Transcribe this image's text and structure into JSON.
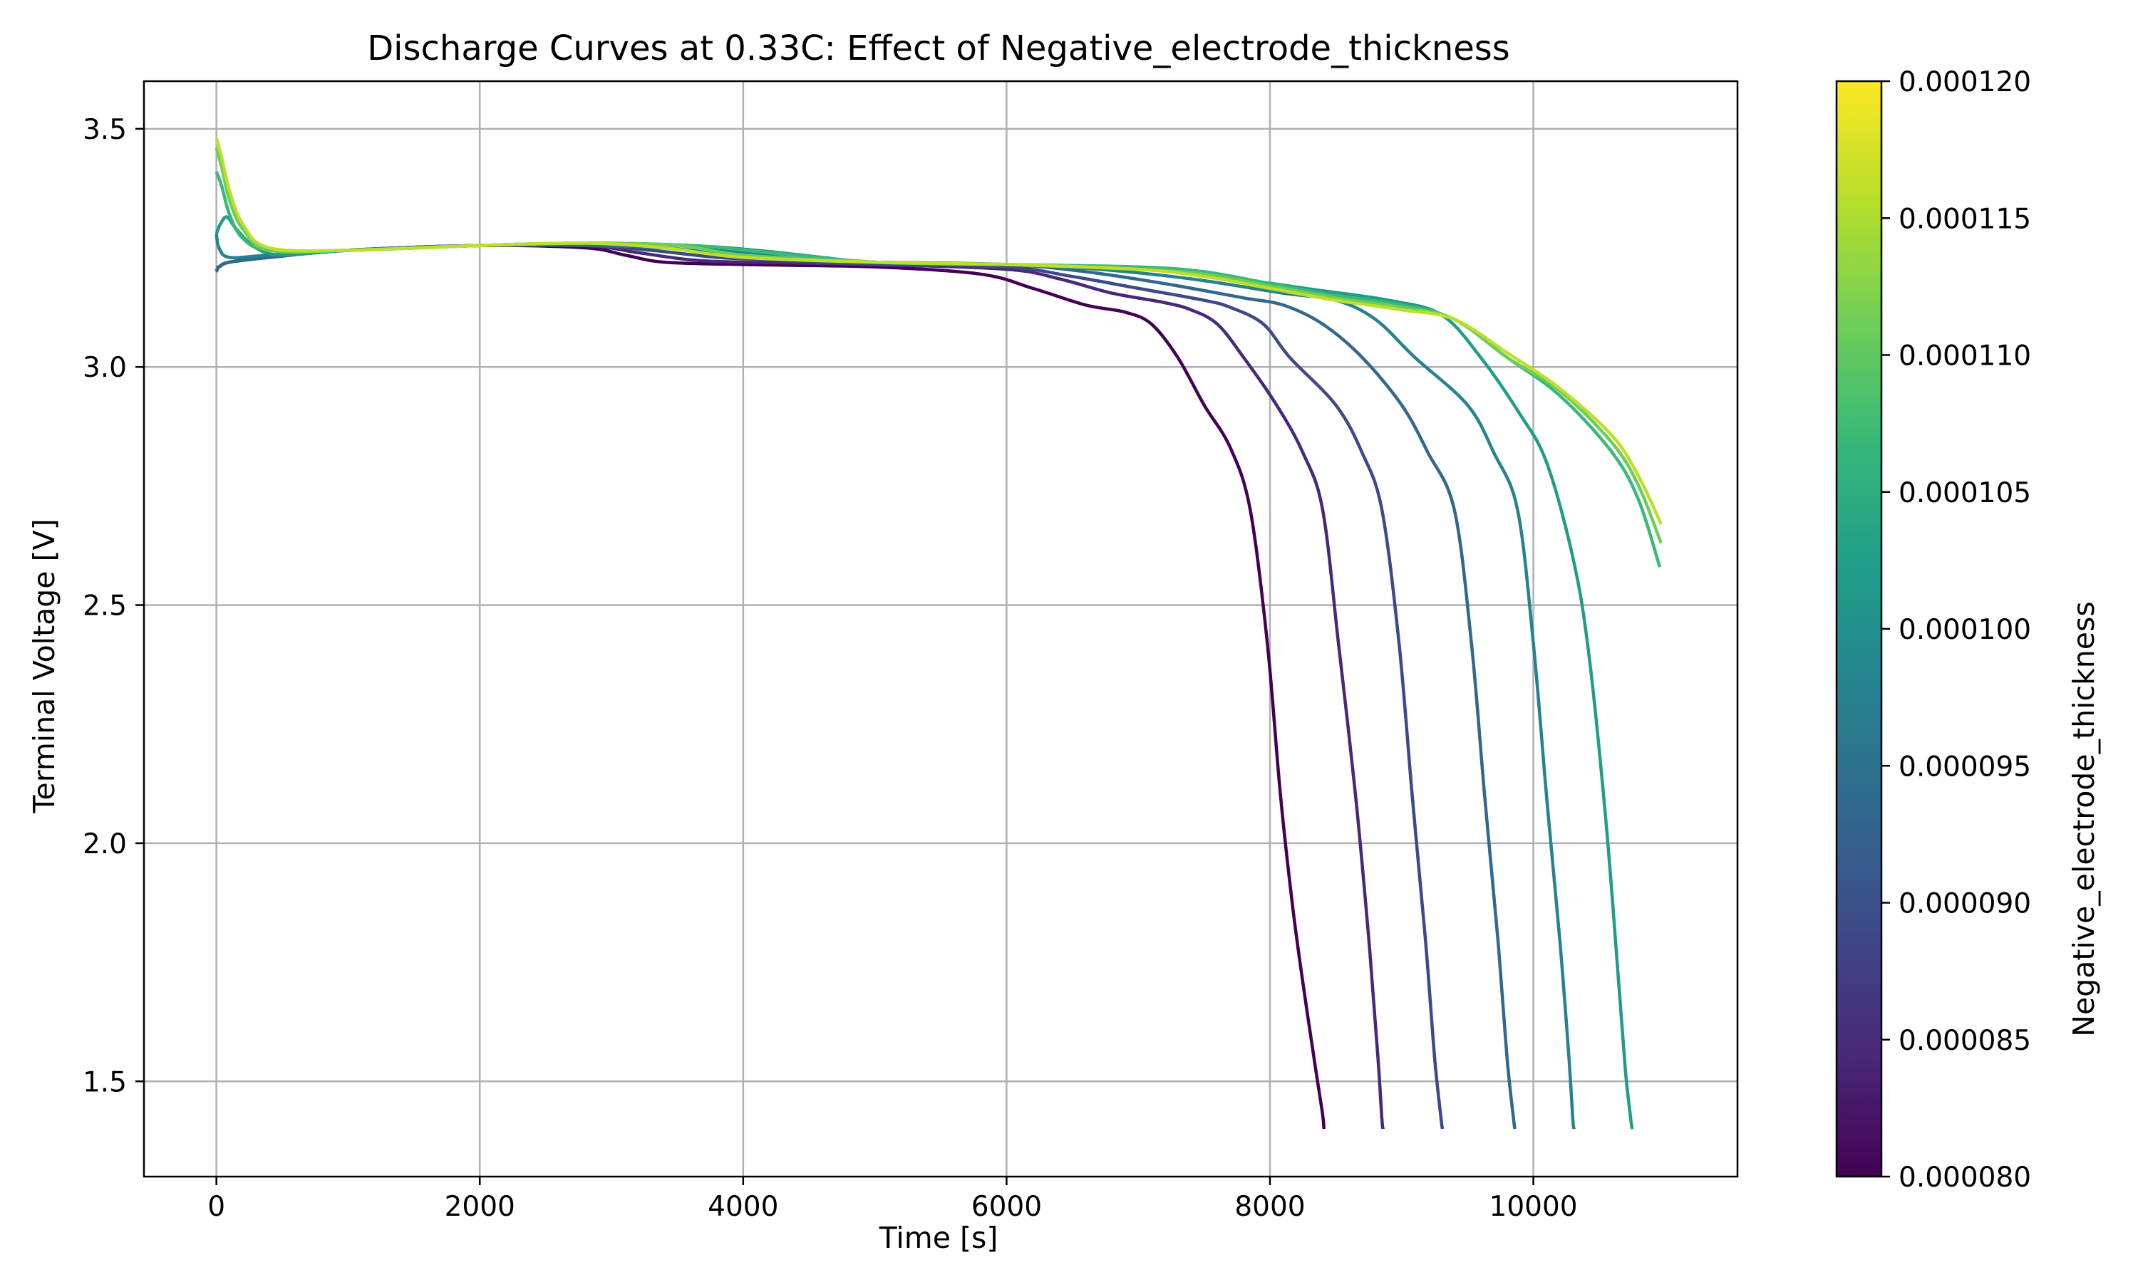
{
  "chart_data": {
    "type": "line",
    "title": "Discharge Curves at 0.33C: Effect of Negative_electrode_thickness",
    "xlabel": "Time [s]",
    "ylabel": "Terminal Voltage [V]",
    "xlim": [
      -550,
      11550
    ],
    "ylim": [
      1.3,
      3.6
    ],
    "xticks": [
      0,
      2000,
      4000,
      6000,
      8000,
      10000
    ],
    "yticks": [
      1.5,
      2.0,
      2.5,
      3.0,
      3.5
    ],
    "xtick_labels": [
      "0",
      "2000",
      "4000",
      "6000",
      "8000",
      "10000"
    ],
    "ytick_labels": [
      "1.5",
      "2.0",
      "2.5",
      "3.0",
      "3.5"
    ],
    "grid": true,
    "legend": "none",
    "colorbar": {
      "label": "Negative_electrode_thickness",
      "min": 8e-05,
      "max": 0.00012,
      "ticks": [
        8e-05,
        8.5e-05,
        9e-05,
        9.5e-05,
        0.0001,
        0.000105,
        0.00011,
        0.000115,
        0.00012
      ],
      "tick_labels": [
        "0.000080",
        "0.000085",
        "0.000090",
        "0.000095",
        "0.000100",
        "0.000105",
        "0.000110",
        "0.000115",
        "0.000120"
      ],
      "colormap": "viridis",
      "colormap_stops": [
        "#440154",
        "#482878",
        "#3e4989",
        "#31688e",
        "#26828e",
        "#1f9e89",
        "#35b779",
        "#6ece58",
        "#b5de2b",
        "#fde725"
      ]
    },
    "series": [
      {
        "param": 8e-05,
        "x": [
          0,
          20,
          100,
          400,
          1000,
          2000,
          2800,
          3100,
          3400,
          4000,
          5000,
          5800,
          6200,
          6600,
          6900,
          7100,
          7300,
          7500,
          7700,
          7850,
          7980,
          8080,
          8180,
          8280,
          8350,
          8400,
          8410
        ],
        "y": [
          3.2,
          3.21,
          3.22,
          3.23,
          3.245,
          3.255,
          3.25,
          3.235,
          3.22,
          3.215,
          3.21,
          3.195,
          3.165,
          3.13,
          3.115,
          3.09,
          3.02,
          2.92,
          2.83,
          2.7,
          2.42,
          2.1,
          1.85,
          1.65,
          1.52,
          1.43,
          1.4
        ]
      },
      {
        "param": 8.44e-05,
        "x": [
          0,
          20,
          100,
          400,
          1000,
          2000,
          2800,
          3200,
          3600,
          4000,
          5000,
          6000,
          6400,
          6800,
          7200,
          7400,
          7600,
          7800,
          8050,
          8250,
          8400,
          8520,
          8650,
          8750,
          8820,
          8850,
          8860
        ],
        "y": [
          3.2,
          3.21,
          3.22,
          3.23,
          3.245,
          3.255,
          3.255,
          3.24,
          3.225,
          3.22,
          3.215,
          3.205,
          3.185,
          3.155,
          3.135,
          3.12,
          3.09,
          3.02,
          2.92,
          2.82,
          2.7,
          2.42,
          2.1,
          1.8,
          1.55,
          1.42,
          1.4
        ]
      },
      {
        "param": 8.89e-05,
        "x": [
          0,
          20,
          100,
          400,
          1000,
          2000,
          2800,
          3300,
          3800,
          4200,
          5000,
          6000,
          6500,
          7000,
          7500,
          7700,
          7950,
          8150,
          8500,
          8700,
          8850,
          8980,
          9080,
          9180,
          9250,
          9300,
          9310
        ],
        "y": [
          3.21,
          3.21,
          3.22,
          3.23,
          3.245,
          3.255,
          3.255,
          3.245,
          3.23,
          3.225,
          3.215,
          3.21,
          3.19,
          3.165,
          3.14,
          3.125,
          3.09,
          3.02,
          2.92,
          2.82,
          2.7,
          2.42,
          2.1,
          1.8,
          1.55,
          1.42,
          1.4
        ]
      },
      {
        "param": 9.33e-05,
        "x": [
          0,
          20,
          100,
          400,
          1000,
          2000,
          2800,
          3400,
          3900,
          4400,
          5000,
          6000,
          6600,
          7200,
          7800,
          8100,
          8400,
          8700,
          9000,
          9200,
          9400,
          9530,
          9630,
          9730,
          9800,
          9850,
          9860
        ],
        "y": [
          3.2,
          3.21,
          3.22,
          3.23,
          3.245,
          3.255,
          3.255,
          3.25,
          3.235,
          3.225,
          3.22,
          3.215,
          3.2,
          3.175,
          3.145,
          3.13,
          3.09,
          3.02,
          2.92,
          2.82,
          2.7,
          2.42,
          2.1,
          1.8,
          1.55,
          1.42,
          1.4
        ]
      },
      {
        "param": 9.78e-05,
        "x": [
          0,
          20,
          100,
          400,
          1000,
          2000,
          2800,
          3500,
          4000,
          4500,
          5000,
          6000,
          6700,
          7400,
          8100,
          8500,
          8800,
          9100,
          9500,
          9700,
          9880,
          10000,
          10100,
          10200,
          10270,
          10300,
          10310
        ],
        "y": [
          3.28,
          3.25,
          3.23,
          3.235,
          3.245,
          3.255,
          3.26,
          3.255,
          3.24,
          3.225,
          3.22,
          3.215,
          3.205,
          3.185,
          3.155,
          3.14,
          3.1,
          3.02,
          2.92,
          2.82,
          2.7,
          2.42,
          2.1,
          1.8,
          1.55,
          1.42,
          1.4
        ]
      },
      {
        "param": 0.000102,
        "x": [
          0,
          30,
          80,
          150,
          300,
          500,
          1000,
          2000,
          2800,
          3600,
          4100,
          4600,
          5000,
          6000,
          6800,
          7600,
          8400,
          8900,
          9300,
          9600,
          9900,
          10100,
          10300,
          10420,
          10550,
          10650,
          10700,
          10740,
          10750
        ],
        "y": [
          3.28,
          3.3,
          3.315,
          3.29,
          3.25,
          3.235,
          3.245,
          3.255,
          3.26,
          3.255,
          3.245,
          3.23,
          3.22,
          3.215,
          3.21,
          3.19,
          3.16,
          3.14,
          3.11,
          3.02,
          2.9,
          2.8,
          2.6,
          2.4,
          2.05,
          1.7,
          1.52,
          1.42,
          1.4
        ]
      },
      {
        "param": 0.000107,
        "x": [
          0,
          40,
          100,
          200,
          400,
          1000,
          2000,
          2800,
          3600,
          4200,
          5000,
          6000,
          7000,
          7500,
          8000,
          8500,
          9000,
          9400,
          9800,
          10200,
          10600,
          10800,
          10960
        ],
        "y": [
          3.41,
          3.38,
          3.32,
          3.27,
          3.245,
          3.245,
          3.255,
          3.26,
          3.255,
          3.24,
          3.22,
          3.215,
          3.21,
          3.2,
          3.175,
          3.15,
          3.13,
          3.1,
          3.02,
          2.94,
          2.82,
          2.72,
          2.58
        ]
      },
      {
        "param": 0.000111,
        "x": [
          0,
          40,
          100,
          200,
          400,
          1000,
          2000,
          2800,
          3500,
          4000,
          5000,
          6000,
          7000,
          7500,
          8000,
          8500,
          9000,
          9400,
          9800,
          10200,
          10600,
          10800,
          10970
        ],
        "y": [
          3.46,
          3.42,
          3.35,
          3.29,
          3.245,
          3.245,
          3.255,
          3.26,
          3.255,
          3.235,
          3.22,
          3.215,
          3.205,
          3.195,
          3.17,
          3.145,
          3.125,
          3.1,
          3.02,
          2.95,
          2.84,
          2.75,
          2.63
        ]
      },
      {
        "param": 0.000116,
        "x": [
          0,
          40,
          100,
          200,
          400,
          1000,
          2000,
          2800,
          3400,
          4000,
          5000,
          6000,
          7000,
          7500,
          8000,
          8500,
          9000,
          9400,
          9800,
          10200,
          10600,
          10800,
          10970
        ],
        "y": [
          3.48,
          3.44,
          3.37,
          3.3,
          3.25,
          3.245,
          3.255,
          3.26,
          3.25,
          3.23,
          3.22,
          3.215,
          3.205,
          3.19,
          3.165,
          3.14,
          3.12,
          3.1,
          3.03,
          2.955,
          2.855,
          2.77,
          2.67
        ]
      }
    ]
  }
}
